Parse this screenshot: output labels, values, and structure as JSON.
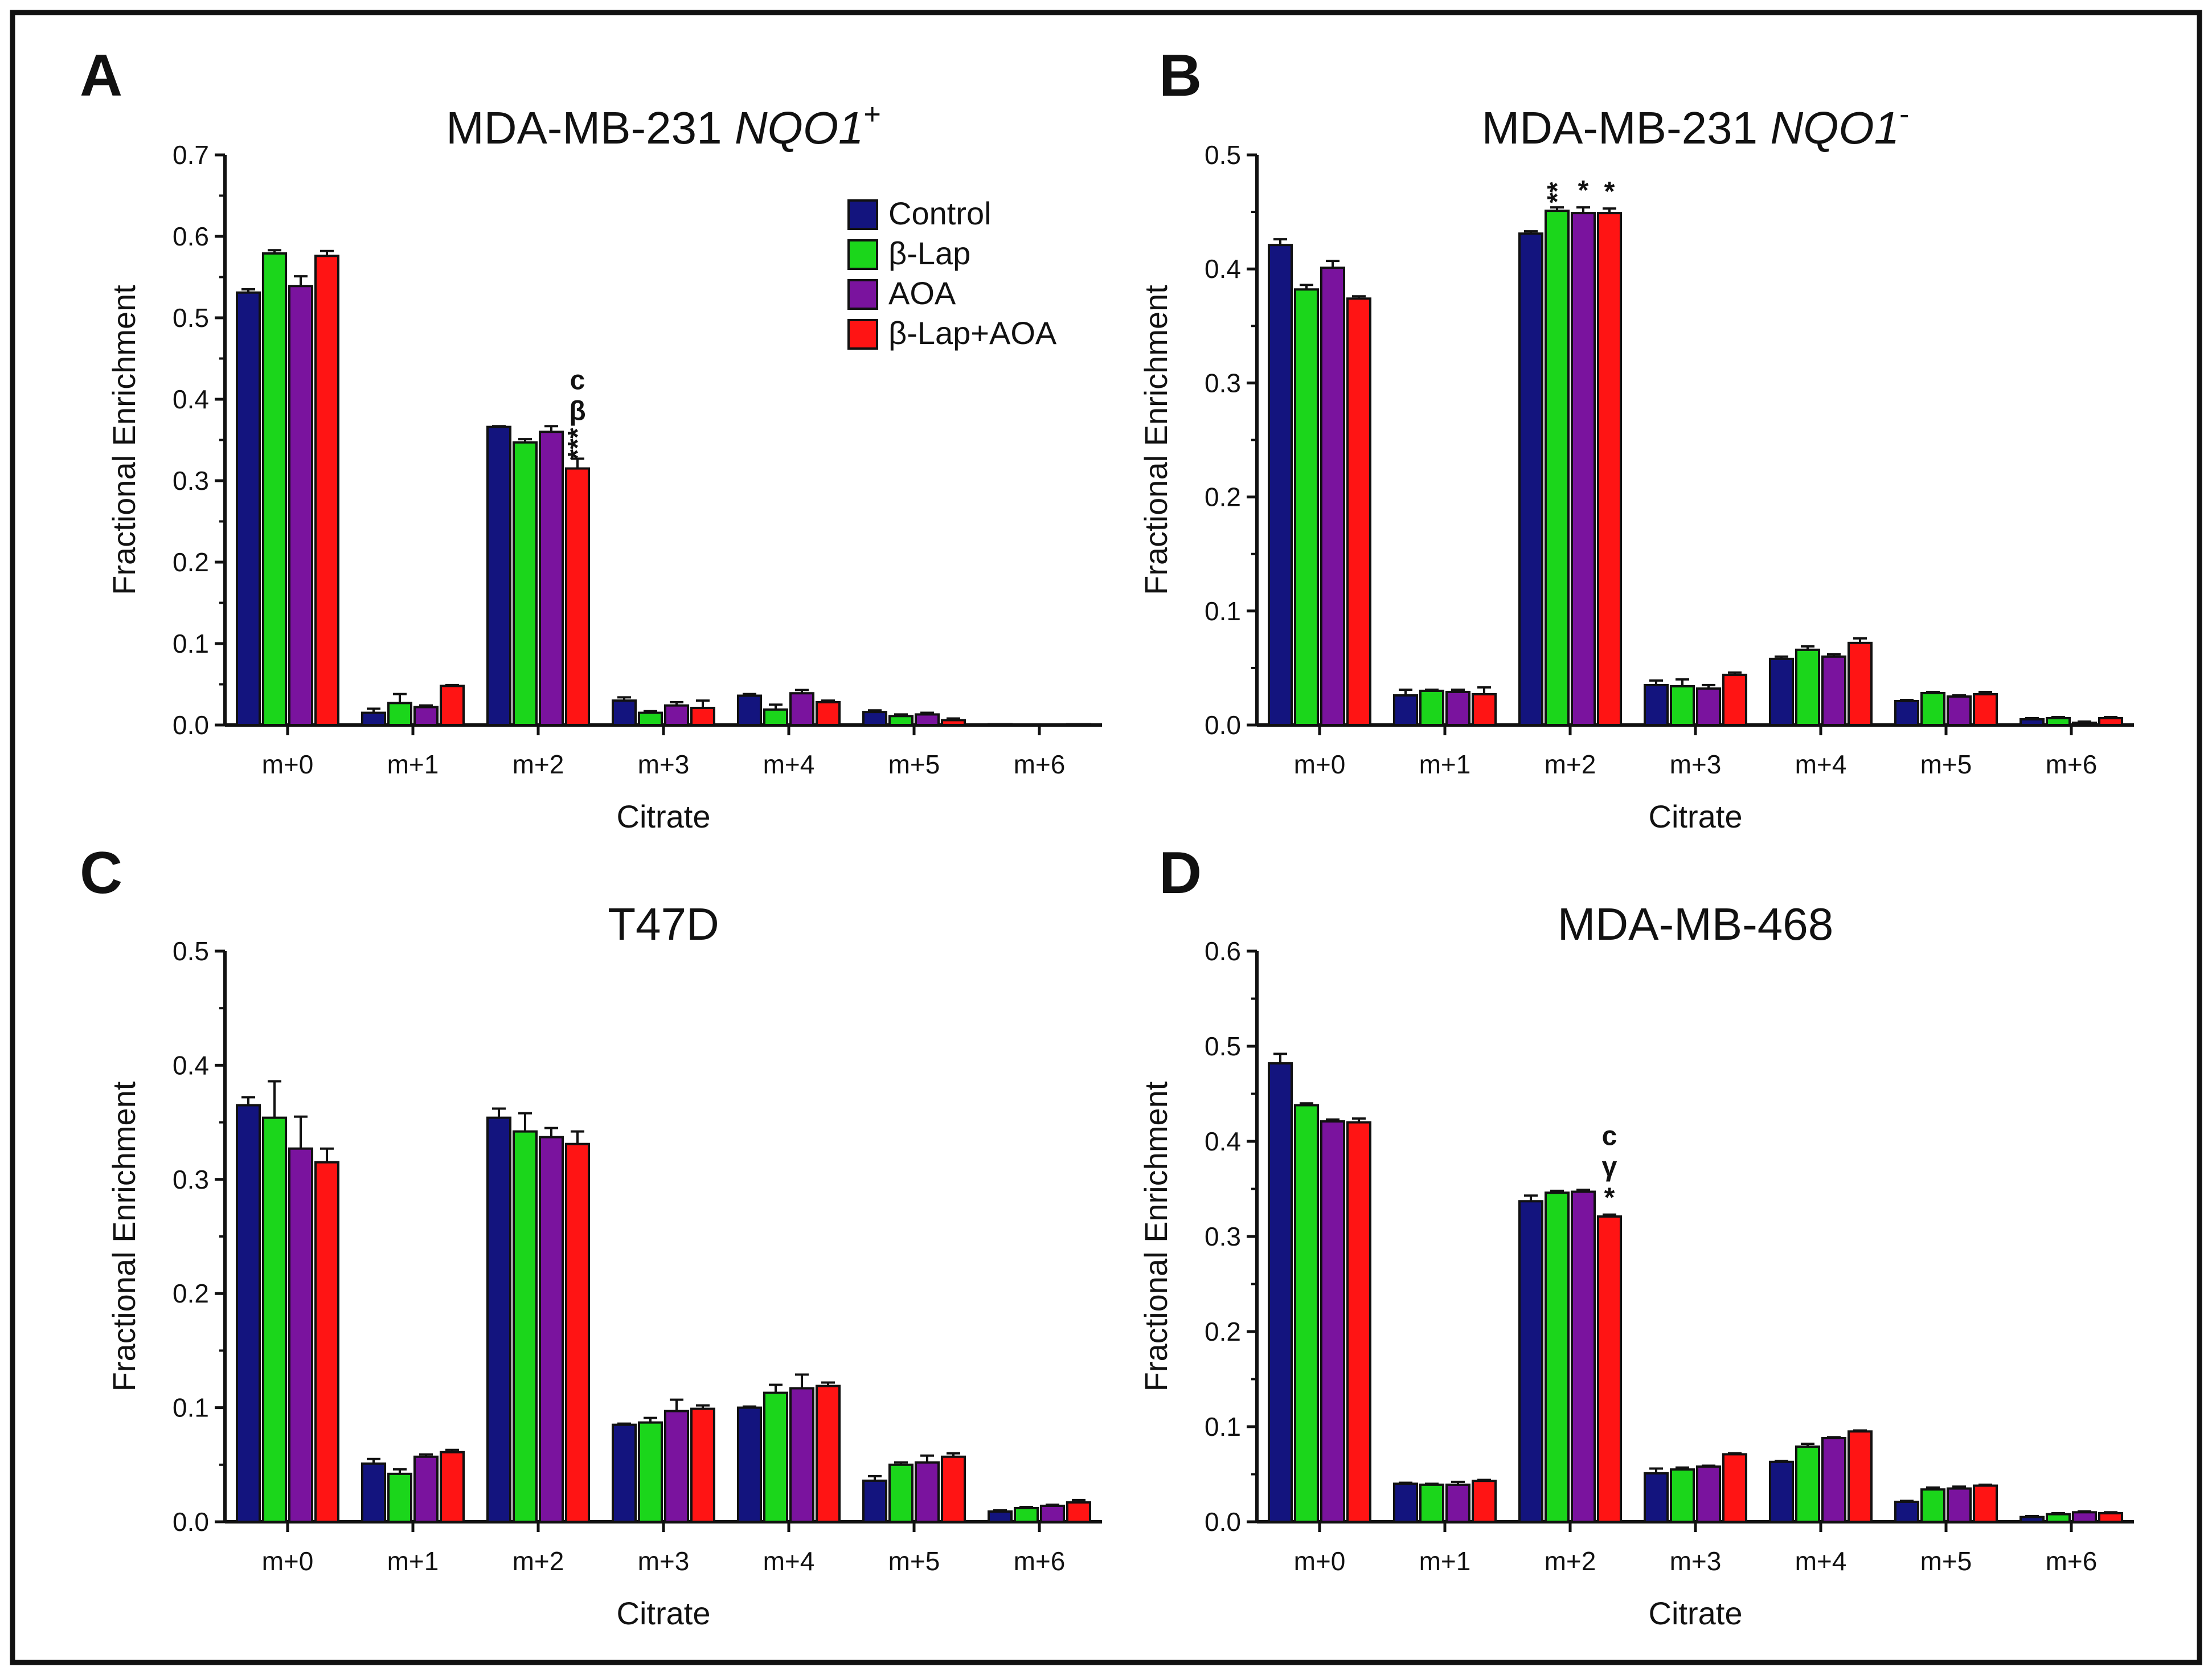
{
  "figure": {
    "colors": {
      "series": [
        "#13147e",
        "#1bd61b",
        "#7a139e",
        "#ff1414"
      ],
      "axis": "#111111",
      "error": "#111111",
      "frame": "#111111"
    }
  },
  "legend": {
    "entries": [
      "Control",
      "β-Lap",
      "AOA",
      "β-Lap+AOA"
    ]
  },
  "chart_data": [
    {
      "panel": "A",
      "type": "bar",
      "title": "MDA-MB-231 ",
      "title_gene": "NQO1",
      "title_superscript": "+",
      "xlabel": "Citrate",
      "ylabel": "Fractional Enrichment",
      "ylim": [
        0,
        0.7
      ],
      "yticks": [
        "0.0",
        "0.1",
        "0.2",
        "0.3",
        "0.4",
        "0.5",
        "0.6",
        "0.7"
      ],
      "categories": [
        "m+0",
        "m+1",
        "m+2",
        "m+3",
        "m+4",
        "m+5",
        "m+6"
      ],
      "legend_position": "top-right",
      "series": [
        {
          "name": "Control",
          "values": [
            0.531,
            0.015,
            0.366,
            0.03,
            0.036,
            0.016,
            0.001
          ],
          "errors": [
            0.004,
            0.005,
            0.001,
            0.004,
            0.002,
            0.002,
            0.0
          ]
        },
        {
          "name": "β-Lap",
          "values": [
            0.579,
            0.027,
            0.347,
            0.015,
            0.019,
            0.011,
            0.0
          ],
          "errors": [
            0.004,
            0.011,
            0.004,
            0.002,
            0.006,
            0.002,
            0.0
          ]
        },
        {
          "name": "AOA",
          "values": [
            0.539,
            0.022,
            0.36,
            0.024,
            0.039,
            0.013,
            0.0
          ],
          "errors": [
            0.012,
            0.002,
            0.007,
            0.004,
            0.004,
            0.002,
            0.0
          ]
        },
        {
          "name": "β-Lap+AOA",
          "values": [
            0.576,
            0.048,
            0.315,
            0.021,
            0.028,
            0.006,
            0.001
          ],
          "errors": [
            0.006,
            0.001,
            0.012,
            0.009,
            0.002,
            0.002,
            0.0
          ]
        }
      ],
      "annotations": [
        {
          "category": "m+2",
          "series": "β-Lap+AOA",
          "lines": [
            "c",
            "β",
            "***"
          ]
        }
      ]
    },
    {
      "panel": "B",
      "type": "bar",
      "title": "MDA-MB-231 ",
      "title_gene": "NQO1",
      "title_superscript": "-",
      "xlabel": "Citrate",
      "ylabel": "Fractional Enrichment",
      "ylim": [
        0,
        0.5
      ],
      "yticks": [
        "0.0",
        "0.1",
        "0.2",
        "0.3",
        "0.4",
        "0.5"
      ],
      "categories": [
        "m+0",
        "m+1",
        "m+2",
        "m+3",
        "m+4",
        "m+5",
        "m+6"
      ],
      "series": [
        {
          "name": "Control",
          "values": [
            0.421,
            0.026,
            0.431,
            0.035,
            0.058,
            0.021,
            0.005
          ],
          "errors": [
            0.005,
            0.005,
            0.002,
            0.004,
            0.002,
            0.001,
            0.001
          ]
        },
        {
          "name": "β-Lap",
          "values": [
            0.382,
            0.03,
            0.451,
            0.034,
            0.066,
            0.028,
            0.006
          ],
          "errors": [
            0.004,
            0.001,
            0.003,
            0.006,
            0.003,
            0.001,
            0.001
          ]
        },
        {
          "name": "AOA",
          "values": [
            0.401,
            0.029,
            0.449,
            0.032,
            0.06,
            0.025,
            0.002
          ],
          "errors": [
            0.006,
            0.002,
            0.005,
            0.003,
            0.002,
            0.001,
            0.001
          ]
        },
        {
          "name": "β-Lap+AOA",
          "values": [
            0.374,
            0.027,
            0.449,
            0.044,
            0.072,
            0.027,
            0.006
          ],
          "errors": [
            0.002,
            0.006,
            0.004,
            0.002,
            0.004,
            0.002,
            0.001
          ]
        }
      ],
      "annotations": [
        {
          "category": "m+2",
          "series": "β-Lap",
          "lines": [
            "**"
          ]
        },
        {
          "category": "m+2",
          "series": "AOA",
          "lines": [
            "*"
          ]
        },
        {
          "category": "m+2",
          "series": "β-Lap+AOA",
          "lines": [
            "*"
          ]
        }
      ]
    },
    {
      "panel": "C",
      "type": "bar",
      "title": "T47D",
      "title_gene": "",
      "title_superscript": "",
      "xlabel": "Citrate",
      "ylabel": "Fractional Enrichment",
      "ylim": [
        0,
        0.5
      ],
      "yticks": [
        "0.0",
        "0.1",
        "0.2",
        "0.3",
        "0.4",
        "0.5"
      ],
      "categories": [
        "m+0",
        "m+1",
        "m+2",
        "m+3",
        "m+4",
        "m+5",
        "m+6"
      ],
      "series": [
        {
          "name": "Control",
          "values": [
            0.365,
            0.051,
            0.354,
            0.085,
            0.1,
            0.036,
            0.009
          ],
          "errors": [
            0.007,
            0.004,
            0.008,
            0.001,
            0.001,
            0.004,
            0.001
          ]
        },
        {
          "name": "β-Lap",
          "values": [
            0.354,
            0.042,
            0.342,
            0.087,
            0.113,
            0.05,
            0.012
          ],
          "errors": [
            0.032,
            0.004,
            0.016,
            0.004,
            0.007,
            0.002,
            0.001
          ]
        },
        {
          "name": "AOA",
          "values": [
            0.327,
            0.057,
            0.337,
            0.097,
            0.117,
            0.052,
            0.014
          ],
          "errors": [
            0.028,
            0.002,
            0.008,
            0.01,
            0.012,
            0.006,
            0.001
          ]
        },
        {
          "name": "β-Lap+AOA",
          "values": [
            0.315,
            0.061,
            0.331,
            0.099,
            0.119,
            0.057,
            0.017
          ],
          "errors": [
            0.012,
            0.002,
            0.011,
            0.003,
            0.003,
            0.003,
            0.002
          ]
        }
      ],
      "annotations": []
    },
    {
      "panel": "D",
      "type": "bar",
      "title": "MDA-MB-468",
      "title_gene": "",
      "title_superscript": "",
      "xlabel": "Citrate",
      "ylabel": "Fractional Enrichment",
      "ylim": [
        0,
        0.6
      ],
      "yticks": [
        "0.0",
        "0.1",
        "0.2",
        "0.3",
        "0.4",
        "0.5",
        "0.6"
      ],
      "categories": [
        "m+0",
        "m+1",
        "m+2",
        "m+3",
        "m+4",
        "m+5",
        "m+6"
      ],
      "series": [
        {
          "name": "Control",
          "values": [
            0.482,
            0.04,
            0.337,
            0.051,
            0.063,
            0.021,
            0.005
          ],
          "errors": [
            0.01,
            0.001,
            0.006,
            0.005,
            0.001,
            0.001,
            0.001
          ]
        },
        {
          "name": "β-Lap",
          "values": [
            0.438,
            0.039,
            0.346,
            0.055,
            0.079,
            0.034,
            0.008
          ],
          "errors": [
            0.002,
            0.001,
            0.002,
            0.002,
            0.003,
            0.002,
            0.001
          ]
        },
        {
          "name": "AOA",
          "values": [
            0.421,
            0.039,
            0.347,
            0.058,
            0.088,
            0.035,
            0.01
          ],
          "errors": [
            0.002,
            0.003,
            0.002,
            0.001,
            0.001,
            0.002,
            0.001
          ]
        },
        {
          "name": "β-Lap+AOA",
          "values": [
            0.42,
            0.043,
            0.321,
            0.071,
            0.095,
            0.038,
            0.009
          ],
          "errors": [
            0.004,
            0.001,
            0.002,
            0.001,
            0.001,
            0.001,
            0.001
          ]
        }
      ],
      "annotations": [
        {
          "category": "m+2",
          "series": "β-Lap+AOA",
          "lines": [
            "c",
            "γ",
            "*"
          ]
        }
      ]
    }
  ]
}
